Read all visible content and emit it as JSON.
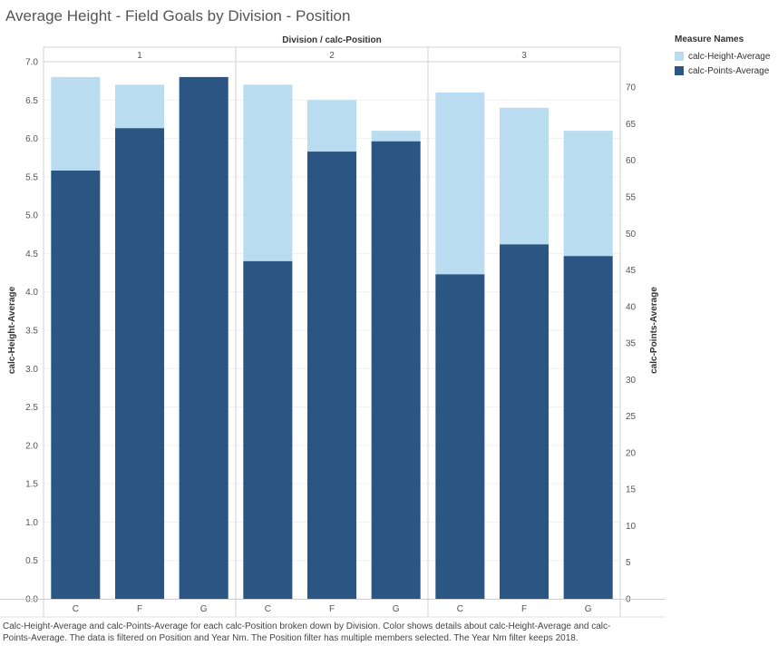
{
  "title": "Average Height - Field Goals by Division - Position",
  "legend": {
    "title": "Measure Names",
    "items": [
      {
        "label": "calc-Height-Average",
        "color": "#b9dcf0"
      },
      {
        "label": "calc-Points-Average",
        "color": "#2b5582"
      }
    ]
  },
  "caption": "Calc-Height-Average and calc-Points-Average for each calc-Position broken down by Division.  Color shows details about calc-Height-Average and calc-Points-Average. The data is filtered on Position and Year Nm. The Position filter has multiple members selected. The Year Nm filter keeps 2018.",
  "chart_data": {
    "type": "bar",
    "header_label": "Division / calc-Position",
    "divisions": [
      "1",
      "2",
      "3"
    ],
    "positions": [
      "C",
      "F",
      "G"
    ],
    "y_left": {
      "label": "calc-Height-Average",
      "range": [
        0,
        7
      ],
      "ticks": [
        "0.0",
        "0.5",
        "1.0",
        "1.5",
        "2.0",
        "2.5",
        "3.0",
        "3.5",
        "4.0",
        "4.5",
        "5.0",
        "5.5",
        "6.0",
        "6.5",
        "7.0"
      ]
    },
    "y_right": {
      "label": "calc-Points-Average",
      "range": [
        0,
        73.5
      ],
      "ticks": [
        "0",
        "5",
        "10",
        "15",
        "20",
        "25",
        "30",
        "35",
        "40",
        "45",
        "50",
        "55",
        "60",
        "65",
        "70"
      ]
    },
    "series": [
      {
        "name": "calc-Height-Average",
        "axis": "left",
        "color": "#b9dcf0",
        "values": [
          6.8,
          6.7,
          6.8,
          6.7,
          6.5,
          6.1,
          6.6,
          6.4,
          6.1
        ]
      },
      {
        "name": "calc-Points-Average",
        "axis": "right",
        "color": "#2b5582",
        "values": [
          58.6,
          64.4,
          71.4,
          46.2,
          61.2,
          62.6,
          44.4,
          48.5,
          46.9
        ]
      }
    ]
  }
}
